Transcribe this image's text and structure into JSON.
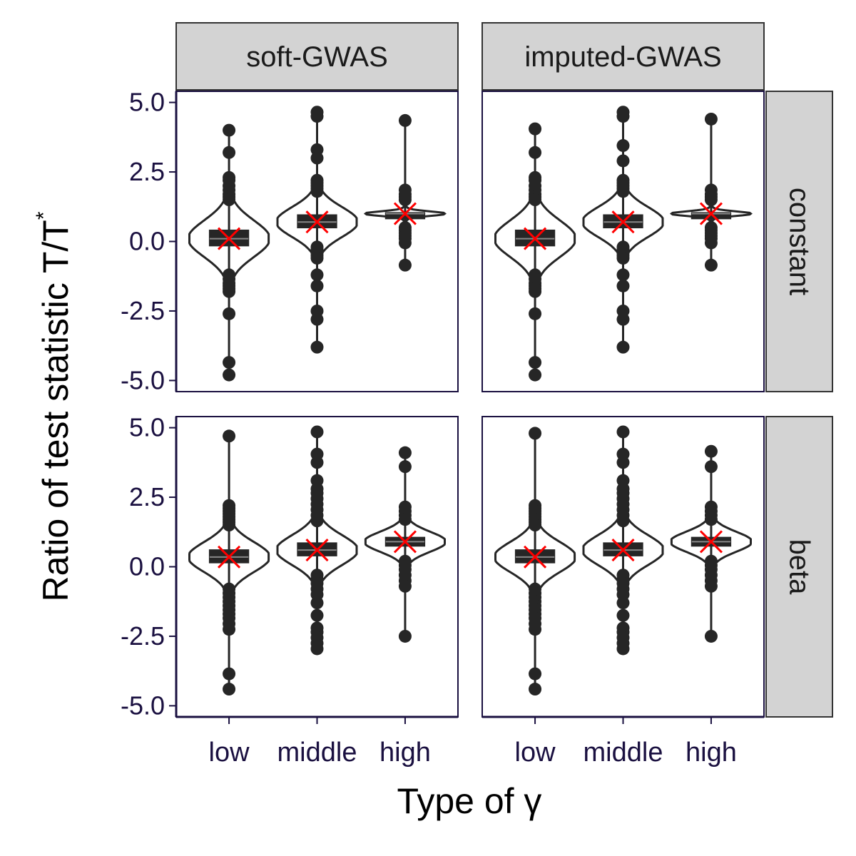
{
  "chart_data": {
    "type": "violin",
    "xlabel": "Type of γ",
    "ylabel_main": "Ratio of test statistic T/T",
    "ylabel_sup": "*",
    "categories": [
      "low",
      "middle",
      "high"
    ],
    "columns": [
      "soft-GWAS",
      "imputed-GWAS"
    ],
    "rows": [
      "constant",
      "beta"
    ],
    "ylim": [
      -5.4,
      5.4
    ],
    "yticks": [
      -5.0,
      -2.5,
      0.0,
      2.5,
      5.0
    ],
    "ytick_labels": [
      "-5.0",
      "-2.5",
      "0.0",
      "2.5",
      "5.0"
    ],
    "mean_marker": "x",
    "mean_marker_color": "#ff0000",
    "ink_color": "#262626",
    "panels": [
      {
        "column": "soft-GWAS",
        "row": "constant",
        "groups": [
          {
            "category": "low",
            "mean": 0.1,
            "q1": -0.15,
            "median": 0.1,
            "q3": 0.4,
            "whisker_low": -1.0,
            "whisker_high": 1.1,
            "violin_halfwidth": 0.45,
            "outliers": [
              4.0,
              3.2,
              2.3,
              2.2,
              2.0,
              1.85,
              1.7,
              1.6,
              1.5,
              -1.2,
              -1.35,
              -1.5,
              -1.6,
              -1.7,
              -1.8,
              -2.6,
              -4.35,
              -4.8
            ]
          },
          {
            "category": "middle",
            "mean": 0.7,
            "q1": 0.5,
            "median": 0.7,
            "q3": 0.95,
            "whisker_low": 0.0,
            "whisker_high": 1.5,
            "violin_halfwidth": 0.45,
            "outliers": [
              4.65,
              4.5,
              3.3,
              3.0,
              2.2,
              2.1,
              2.0,
              1.9,
              1.8,
              -0.2,
              -0.3,
              -0.4,
              -0.5,
              -0.6,
              -1.2,
              -1.6,
              -2.5,
              -2.8,
              -3.8
            ]
          },
          {
            "category": "high",
            "mean": 1.0,
            "q1": 0.97,
            "median": 1.0,
            "q3": 1.03,
            "whisker_low": 0.7,
            "whisker_high": 1.3,
            "violin_halfwidth": 0.45,
            "outliers": [
              4.35,
              1.85,
              1.7,
              1.6,
              1.5,
              0.5,
              0.4,
              0.3,
              0.2,
              0.1,
              -0.05,
              -0.85
            ]
          }
        ]
      },
      {
        "column": "imputed-GWAS",
        "row": "constant",
        "groups": [
          {
            "category": "low",
            "mean": 0.1,
            "q1": -0.15,
            "median": 0.1,
            "q3": 0.4,
            "whisker_low": -1.0,
            "whisker_high": 1.1,
            "violin_halfwidth": 0.45,
            "outliers": [
              4.05,
              3.2,
              2.3,
              2.2,
              2.0,
              1.85,
              1.7,
              1.6,
              1.5,
              -1.2,
              -1.35,
              -1.5,
              -1.6,
              -1.7,
              -1.8,
              -2.6,
              -4.35,
              -4.8
            ]
          },
          {
            "category": "middle",
            "mean": 0.7,
            "q1": 0.5,
            "median": 0.7,
            "q3": 0.95,
            "whisker_low": 0.0,
            "whisker_high": 1.5,
            "violin_halfwidth": 0.45,
            "outliers": [
              4.65,
              4.5,
              3.45,
              2.9,
              2.2,
              2.1,
              2.0,
              1.9,
              1.8,
              -0.2,
              -0.3,
              -0.4,
              -0.5,
              -0.6,
              -1.2,
              -1.6,
              -2.5,
              -2.8,
              -3.8
            ]
          },
          {
            "category": "high",
            "mean": 1.0,
            "q1": 0.97,
            "median": 1.0,
            "q3": 1.03,
            "whisker_low": 0.7,
            "whisker_high": 1.3,
            "violin_halfwidth": 0.45,
            "outliers": [
              4.4,
              1.85,
              1.7,
              1.6,
              1.5,
              0.5,
              0.4,
              0.3,
              0.2,
              0.1,
              -0.05,
              -0.85
            ]
          }
        ]
      },
      {
        "column": "soft-GWAS",
        "row": "beta",
        "groups": [
          {
            "category": "low",
            "mean": 0.35,
            "q1": 0.15,
            "median": 0.35,
            "q3": 0.6,
            "whisker_low": -0.6,
            "whisker_high": 1.3,
            "violin_halfwidth": 0.45,
            "outliers": [
              4.7,
              2.2,
              2.1,
              2.0,
              1.9,
              1.8,
              1.7,
              1.6,
              1.5,
              -0.8,
              -0.95,
              -1.1,
              -1.25,
              -1.4,
              -1.55,
              -1.7,
              -1.85,
              -2.05,
              -2.25,
              -3.85,
              -4.4
            ]
          },
          {
            "category": "middle",
            "mean": 0.6,
            "q1": 0.4,
            "median": 0.6,
            "q3": 0.85,
            "whisker_low": -0.2,
            "whisker_high": 1.5,
            "violin_halfwidth": 0.45,
            "outliers": [
              4.85,
              4.05,
              3.75,
              3.1,
              2.8,
              2.65,
              2.45,
              2.25,
              2.05,
              1.85,
              1.65,
              -0.3,
              -0.45,
              -0.6,
              -0.8,
              -1.0,
              -1.3,
              -1.75,
              -2.2,
              -2.35,
              -2.55,
              -2.75,
              -2.95
            ]
          },
          {
            "category": "high",
            "mean": 0.9,
            "q1": 0.75,
            "median": 0.9,
            "q3": 1.05,
            "whisker_low": 0.3,
            "whisker_high": 1.45,
            "violin_halfwidth": 0.45,
            "outliers": [
              4.1,
              3.6,
              2.15,
              2.0,
              1.85,
              1.7,
              0.2,
              0.05,
              -0.1,
              -0.3,
              -0.5,
              -0.7,
              -2.5
            ]
          }
        ]
      },
      {
        "column": "imputed-GWAS",
        "row": "beta",
        "groups": [
          {
            "category": "low",
            "mean": 0.35,
            "q1": 0.15,
            "median": 0.35,
            "q3": 0.6,
            "whisker_low": -0.6,
            "whisker_high": 1.3,
            "violin_halfwidth": 0.45,
            "outliers": [
              4.8,
              2.2,
              2.1,
              2.0,
              1.9,
              1.8,
              1.7,
              1.6,
              1.5,
              -0.8,
              -0.95,
              -1.1,
              -1.25,
              -1.4,
              -1.55,
              -1.7,
              -1.85,
              -2.05,
              -2.25,
              -3.85,
              -4.4
            ]
          },
          {
            "category": "middle",
            "mean": 0.6,
            "q1": 0.4,
            "median": 0.6,
            "q3": 0.85,
            "whisker_low": -0.2,
            "whisker_high": 1.5,
            "violin_halfwidth": 0.45,
            "outliers": [
              4.85,
              4.05,
              3.75,
              3.1,
              2.8,
              2.65,
              2.45,
              2.25,
              2.05,
              1.85,
              1.65,
              -0.3,
              -0.45,
              -0.6,
              -0.8,
              -1.0,
              -1.3,
              -1.75,
              -2.2,
              -2.35,
              -2.55,
              -2.75,
              -2.95
            ]
          },
          {
            "category": "high",
            "mean": 0.9,
            "q1": 0.75,
            "median": 0.9,
            "q3": 1.05,
            "whisker_low": 0.3,
            "whisker_high": 1.45,
            "violin_halfwidth": 0.45,
            "outliers": [
              4.15,
              3.6,
              2.15,
              2.0,
              1.85,
              1.7,
              0.2,
              0.05,
              -0.1,
              -0.3,
              -0.5,
              -0.7,
              -2.5
            ]
          }
        ]
      }
    ]
  }
}
